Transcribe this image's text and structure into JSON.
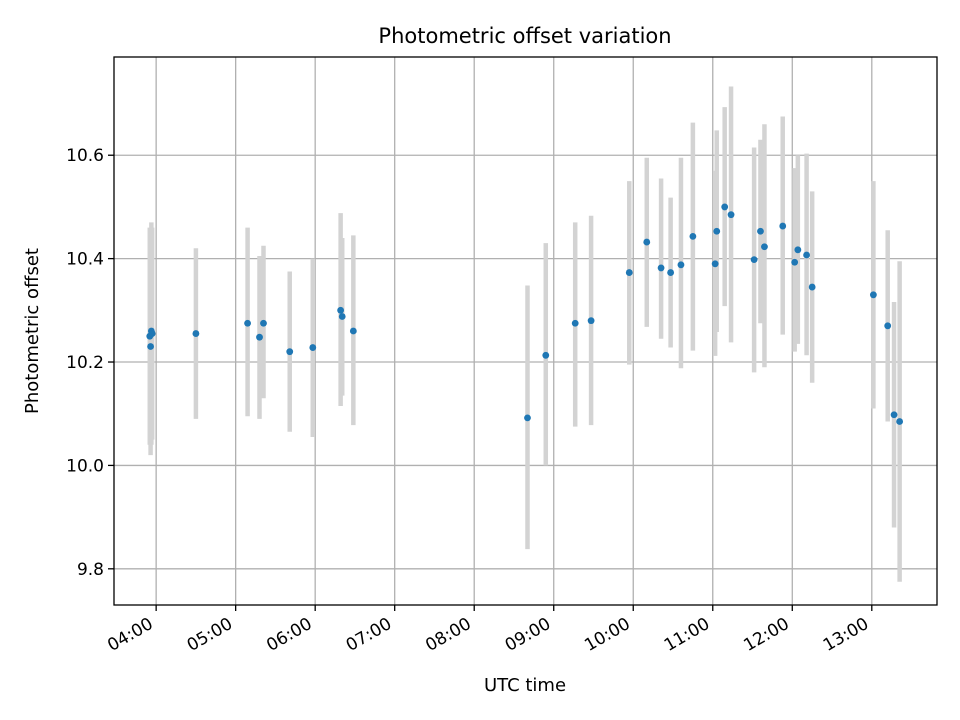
{
  "chart_data": {
    "type": "scatter",
    "title": "Photometric offset variation",
    "xlabel": "UTC time",
    "ylabel": "Photometric offset",
    "xlim": [
      3.47,
      13.82
    ],
    "ylim": [
      9.73,
      10.79
    ],
    "grid": true,
    "xticks": [
      4,
      5,
      6,
      7,
      8,
      9,
      10,
      11,
      12,
      13
    ],
    "xtick_labels": [
      "04:00",
      "05:00",
      "06:00",
      "07:00",
      "08:00",
      "09:00",
      "10:00",
      "11:00",
      "12:00",
      "13:00"
    ],
    "yticks": [
      9.8,
      10.0,
      10.2,
      10.4,
      10.6
    ],
    "ytick_labels": [
      "9.8",
      "10.0",
      "10.2",
      "10.4",
      "10.6"
    ],
    "marker_color": "#1f77b4",
    "errorbar_color": "#d3d3d3",
    "points": [
      {
        "x": 3.92,
        "y": 10.25,
        "ylo": 10.04,
        "yhi": 10.46
      },
      {
        "x": 3.93,
        "y": 10.23,
        "ylo": 10.02,
        "yhi": 10.44
      },
      {
        "x": 3.94,
        "y": 10.26,
        "ylo": 10.04,
        "yhi": 10.47
      },
      {
        "x": 3.95,
        "y": 10.255,
        "ylo": 10.05,
        "yhi": 10.46
      },
      {
        "x": 4.5,
        "y": 10.255,
        "ylo": 10.09,
        "yhi": 10.42
      },
      {
        "x": 5.15,
        "y": 10.275,
        "ylo": 10.095,
        "yhi": 10.46
      },
      {
        "x": 5.3,
        "y": 10.248,
        "ylo": 10.09,
        "yhi": 10.405
      },
      {
        "x": 5.35,
        "y": 10.275,
        "ylo": 10.13,
        "yhi": 10.425
      },
      {
        "x": 5.68,
        "y": 10.22,
        "ylo": 10.065,
        "yhi": 10.375
      },
      {
        "x": 5.97,
        "y": 10.228,
        "ylo": 10.055,
        "yhi": 10.4
      },
      {
        "x": 6.32,
        "y": 10.3,
        "ylo": 10.115,
        "yhi": 10.488
      },
      {
        "x": 6.34,
        "y": 10.288,
        "ylo": 10.135,
        "yhi": 10.44
      },
      {
        "x": 6.48,
        "y": 10.26,
        "ylo": 10.078,
        "yhi": 10.445
      },
      {
        "x": 8.67,
        "y": 10.092,
        "ylo": 9.838,
        "yhi": 10.348
      },
      {
        "x": 8.9,
        "y": 10.213,
        "ylo": 10.0,
        "yhi": 10.43
      },
      {
        "x": 9.27,
        "y": 10.275,
        "ylo": 10.075,
        "yhi": 10.47
      },
      {
        "x": 9.47,
        "y": 10.28,
        "ylo": 10.078,
        "yhi": 10.483
      },
      {
        "x": 9.95,
        "y": 10.373,
        "ylo": 10.195,
        "yhi": 10.55
      },
      {
        "x": 10.17,
        "y": 10.432,
        "ylo": 10.268,
        "yhi": 10.595
      },
      {
        "x": 10.35,
        "y": 10.382,
        "ylo": 10.245,
        "yhi": 10.555
      },
      {
        "x": 10.47,
        "y": 10.373,
        "ylo": 10.228,
        "yhi": 10.518
      },
      {
        "x": 10.6,
        "y": 10.388,
        "ylo": 10.188,
        "yhi": 10.595
      },
      {
        "x": 10.75,
        "y": 10.443,
        "ylo": 10.222,
        "yhi": 10.663
      },
      {
        "x": 11.03,
        "y": 10.39,
        "ylo": 10.212,
        "yhi": 10.57
      },
      {
        "x": 11.05,
        "y": 10.453,
        "ylo": 10.258,
        "yhi": 10.648
      },
      {
        "x": 11.15,
        "y": 10.5,
        "ylo": 10.308,
        "yhi": 10.693
      },
      {
        "x": 11.23,
        "y": 10.485,
        "ylo": 10.238,
        "yhi": 10.733
      },
      {
        "x": 11.52,
        "y": 10.398,
        "ylo": 10.18,
        "yhi": 10.615
      },
      {
        "x": 11.6,
        "y": 10.453,
        "ylo": 10.275,
        "yhi": 10.63
      },
      {
        "x": 11.65,
        "y": 10.423,
        "ylo": 10.19,
        "yhi": 10.66
      },
      {
        "x": 11.88,
        "y": 10.463,
        "ylo": 10.253,
        "yhi": 10.675
      },
      {
        "x": 12.03,
        "y": 10.393,
        "ylo": 10.22,
        "yhi": 10.575
      },
      {
        "x": 12.07,
        "y": 10.417,
        "ylo": 10.235,
        "yhi": 10.6
      },
      {
        "x": 12.18,
        "y": 10.407,
        "ylo": 10.213,
        "yhi": 10.603
      },
      {
        "x": 12.25,
        "y": 10.345,
        "ylo": 10.16,
        "yhi": 10.53
      },
      {
        "x": 13.02,
        "y": 10.33,
        "ylo": 10.11,
        "yhi": 10.55
      },
      {
        "x": 13.2,
        "y": 10.27,
        "ylo": 10.085,
        "yhi": 10.455
      },
      {
        "x": 13.28,
        "y": 10.098,
        "ylo": 9.88,
        "yhi": 10.316
      },
      {
        "x": 13.35,
        "y": 10.085,
        "ylo": 9.775,
        "yhi": 10.395
      }
    ]
  }
}
